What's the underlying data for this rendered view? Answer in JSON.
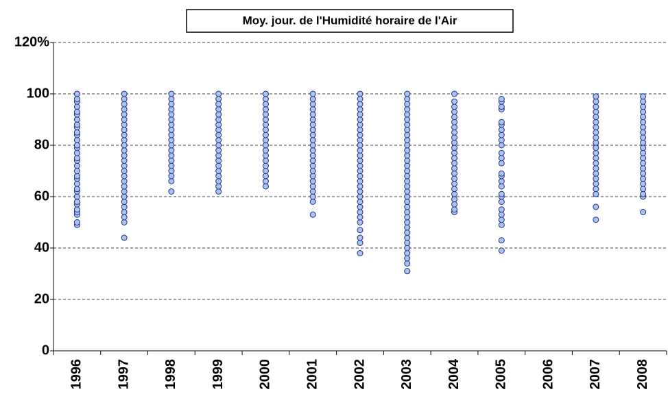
{
  "chart_data": {
    "type": "scatter",
    "title": "Moy. jour. de l'Humidité horaire de l'Air",
    "categories": [
      "1996",
      "1997",
      "1998",
      "1999",
      "2000",
      "2001",
      "2002",
      "2003",
      "2004",
      "2005",
      "2006",
      "2007",
      "2008"
    ],
    "values": [
      [
        49,
        50,
        53,
        54,
        55,
        57,
        58,
        60,
        62,
        63,
        65,
        67,
        68,
        70,
        72,
        74,
        75,
        77,
        79,
        80,
        82,
        84,
        85,
        87,
        88,
        90,
        92,
        93,
        95,
        97,
        98,
        100
      ],
      [
        44,
        50,
        52,
        54,
        56,
        58,
        60,
        62,
        64,
        66,
        68,
        70,
        72,
        74,
        76,
        78,
        80,
        82,
        84,
        86,
        88,
        90,
        92,
        94,
        96,
        98,
        100
      ],
      [
        62,
        66,
        68,
        70,
        72,
        74,
        76,
        78,
        80,
        82,
        84,
        86,
        88,
        90,
        92,
        94,
        96,
        98,
        100
      ],
      [
        62,
        64,
        66,
        68,
        70,
        72,
        74,
        76,
        78,
        80,
        82,
        84,
        86,
        88,
        90,
        92,
        94,
        96,
        98,
        100
      ],
      [
        64,
        66,
        68,
        70,
        72,
        74,
        76,
        78,
        80,
        82,
        84,
        86,
        88,
        90,
        92,
        94,
        96,
        98,
        100
      ],
      [
        53,
        58,
        60,
        62,
        64,
        66,
        68,
        70,
        72,
        74,
        76,
        78,
        80,
        82,
        84,
        86,
        88,
        90,
        92,
        94,
        96,
        98,
        100
      ],
      [
        38,
        42,
        44,
        47,
        50,
        52,
        54,
        56,
        58,
        60,
        62,
        64,
        66,
        68,
        70,
        72,
        74,
        76,
        78,
        80,
        82,
        84,
        86,
        88,
        90,
        92,
        94,
        96,
        98,
        100
      ],
      [
        31,
        31,
        34,
        36,
        38,
        40,
        42,
        44,
        46,
        48,
        50,
        52,
        54,
        56,
        58,
        60,
        62,
        64,
        66,
        68,
        70,
        72,
        74,
        76,
        78,
        80,
        82,
        84,
        86,
        88,
        90,
        92,
        94,
        96,
        98,
        100
      ],
      [
        54,
        55,
        57,
        59,
        61,
        63,
        65,
        67,
        69,
        71,
        73,
        75,
        77,
        79,
        81,
        83,
        85,
        87,
        89,
        91,
        93,
        95,
        97,
        100
      ],
      [
        39,
        43,
        49,
        51,
        53,
        55,
        58,
        60,
        61,
        64,
        66,
        68,
        69,
        73,
        75,
        77,
        80,
        82,
        84,
        86,
        88,
        89,
        94,
        95,
        97,
        98
      ],
      [],
      [
        51,
        56,
        61,
        63,
        65,
        67,
        69,
        71,
        73,
        75,
        77,
        79,
        81,
        83,
        85,
        87,
        89,
        91,
        93,
        95,
        97,
        99
      ],
      [
        54,
        60,
        61,
        63,
        65,
        67,
        69,
        71,
        73,
        75,
        77,
        79,
        81,
        83,
        85,
        87,
        89,
        91,
        93,
        95,
        97,
        99
      ]
    ],
    "color": "#a9c4ef",
    "edge_color": "#1f2a80",
    "ylim": [
      0,
      120
    ],
    "yticks": [
      0,
      20,
      40,
      60,
      80,
      100,
      {
        "value": 120,
        "label": "120%"
      }
    ],
    "grid": true
  }
}
